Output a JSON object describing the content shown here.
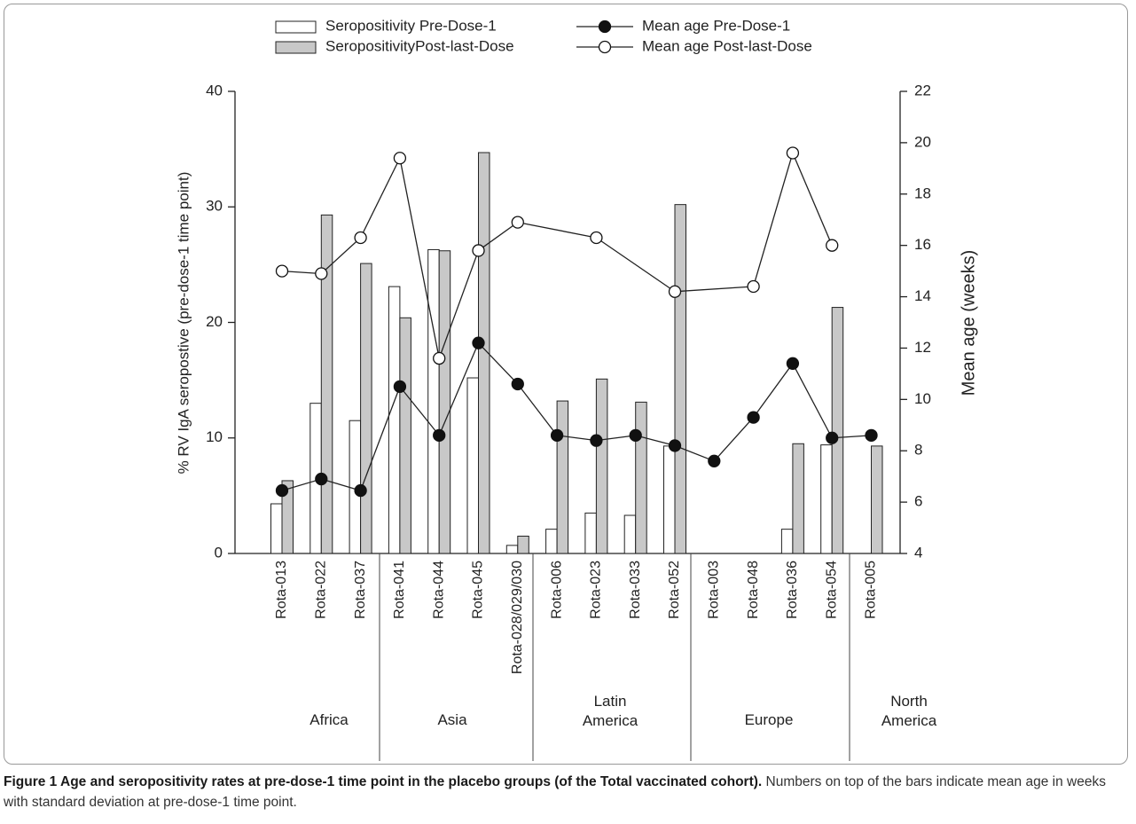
{
  "chart_data": {
    "type": "bar",
    "y_label": "% RV IgA seropostive (pre-dose-1 time point)",
    "y2_label": "Mean age (weeks)",
    "categories": [
      "Rota-013",
      "Rota-022",
      "Rota-037",
      "Rota-041",
      "Rota-044",
      "Rota-045",
      "Rota-028/029/030",
      "Rota-006",
      "Rota-023",
      "Rota-033",
      "Rota-052",
      "Rota-003",
      "Rota-048",
      "Rota-036",
      "Rota-054",
      "Rota-005"
    ],
    "groups": [
      "Africa",
      "Asia",
      "Latin America",
      "Europe",
      "North America"
    ],
    "ylim": [
      0,
      40
    ],
    "yticks": [
      0,
      10,
      20,
      30,
      40
    ],
    "y2lim": [
      4,
      22
    ],
    "y2ticks": [
      4,
      6,
      8,
      10,
      12,
      14,
      16,
      18,
      20,
      22
    ],
    "series": [
      {
        "name": "Seropositivity Pre-Dose-1",
        "type": "bar",
        "color": "#ffffff",
        "values": [
          4.3,
          13.0,
          11.5,
          23.1,
          26.3,
          15.2,
          0.7,
          2.1,
          3.5,
          3.3,
          9.3,
          null,
          null,
          2.1,
          9.4,
          null
        ]
      },
      {
        "name": "SeropositivityPost-last-Dose",
        "type": "bar",
        "color": "#c8c8c8",
        "values": [
          6.3,
          29.3,
          25.1,
          20.4,
          26.2,
          34.7,
          1.5,
          13.2,
          15.1,
          13.1,
          30.2,
          null,
          null,
          9.5,
          21.3,
          9.3
        ]
      },
      {
        "name": "Mean age Pre-Dose-1",
        "type": "line",
        "axis": "y2",
        "color": "#111111",
        "values": [
          6.45,
          6.9,
          6.45,
          10.5,
          8.6,
          12.2,
          10.6,
          8.6,
          8.4,
          8.6,
          8.2,
          7.6,
          9.3,
          11.4,
          8.5,
          8.6
        ]
      },
      {
        "name": "Mean age Post-last-Dose",
        "type": "line",
        "axis": "y2",
        "color": "#ffffff",
        "values": [
          15.0,
          14.9,
          16.3,
          19.4,
          11.6,
          15.8,
          16.9,
          null,
          16.3,
          null,
          14.2,
          null,
          14.4,
          19.6,
          16.0,
          null
        ]
      }
    ]
  },
  "caption": {
    "bold": "Figure 1 Age and seropositivity rates at pre-dose-1 time point in the placebo groups (of the Total vaccinated cohort).",
    "text": "Numbers on top of the bars indicate mean age in weeks with standard deviation at pre-dose-1 time point."
  }
}
